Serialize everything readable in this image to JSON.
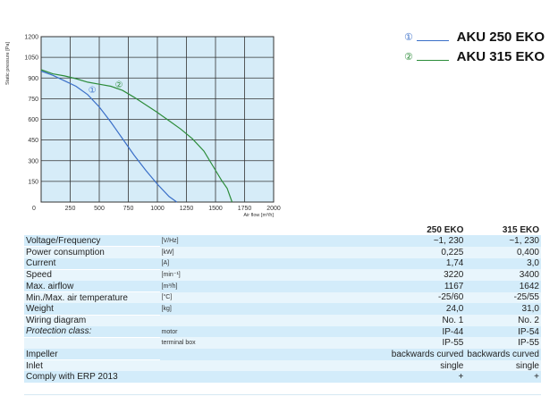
{
  "chart_data": {
    "type": "line",
    "xlabel": "Air flow [m³/h]",
    "ylabel": "Static pressure [Pa]",
    "xlim": [
      0,
      2000
    ],
    "ylim": [
      0,
      1200
    ],
    "x_ticks": [
      0,
      250,
      500,
      750,
      1000,
      1250,
      1500,
      1750,
      2000
    ],
    "y_ticks": [
      150,
      300,
      450,
      600,
      750,
      900,
      1050,
      1200
    ],
    "grid": true,
    "series": [
      {
        "name": "①",
        "color": "#3a6fc8",
        "points": [
          [
            0,
            950
          ],
          [
            100,
            920
          ],
          [
            200,
            880
          ],
          [
            300,
            840
          ],
          [
            400,
            780
          ],
          [
            500,
            690
          ],
          [
            600,
            580
          ],
          [
            700,
            460
          ],
          [
            800,
            340
          ],
          [
            900,
            230
          ],
          [
            1000,
            130
          ],
          [
            1100,
            40
          ],
          [
            1167,
            0
          ]
        ]
      },
      {
        "name": "②",
        "color": "#2c8c3a",
        "points": [
          [
            0,
            960
          ],
          [
            100,
            930
          ],
          [
            200,
            915
          ],
          [
            300,
            895
          ],
          [
            400,
            870
          ],
          [
            500,
            855
          ],
          [
            600,
            840
          ],
          [
            700,
            810
          ],
          [
            800,
            760
          ],
          [
            900,
            705
          ],
          [
            1000,
            650
          ],
          [
            1100,
            590
          ],
          [
            1200,
            530
          ],
          [
            1300,
            460
          ],
          [
            1400,
            370
          ],
          [
            1500,
            230
          ],
          [
            1550,
            160
          ],
          [
            1600,
            100
          ],
          [
            1642,
            0
          ]
        ]
      }
    ],
    "annotations": [
      {
        "text": "①",
        "x": 440,
        "y": 790
      },
      {
        "text": "②",
        "x": 670,
        "y": 830
      }
    ]
  },
  "legend": [
    {
      "num": "①",
      "name": "AKU  250 EKO",
      "color": "#3a6fc8"
    },
    {
      "num": "②",
      "name": "AKU 315 EKO",
      "color": "#2c8c3a"
    }
  ],
  "table": {
    "headers": [
      "250 EKO",
      "315 EKO"
    ],
    "rows": [
      {
        "label": "Voltage/Frequency",
        "unit": "[V/Hz]",
        "v1": "~1, 230",
        "v2": "~1, 230",
        "style": "row"
      },
      {
        "label": "Power consumption",
        "unit": "[kW]",
        "v1": "0,225",
        "v2": "0,400",
        "style": "alt"
      },
      {
        "label": "Current",
        "unit": "[A]",
        "v1": "1,74",
        "v2": "3,0",
        "style": "row"
      },
      {
        "label": "Speed",
        "unit": "[min⁻¹]",
        "v1": "3220",
        "v2": "3400",
        "style": "alt"
      },
      {
        "label": "Max. airflow",
        "unit": "[m³/h]",
        "v1": "1167",
        "v2": "1642",
        "style": "row"
      },
      {
        "label": "Min./Max. air temperature",
        "unit": "[°C]",
        "v1": "-25/60",
        "v2": "-25/55",
        "style": "alt"
      },
      {
        "label": "Weight",
        "unit": "[kg]",
        "v1": "24,0",
        "v2": "31,0",
        "style": "row"
      },
      {
        "label": "Wiring diagram",
        "unit": "",
        "v1": "No. 1",
        "v2": "No. 2",
        "style": "alt"
      },
      {
        "label": "Protection class:",
        "unit": "motor",
        "v1": "IP-44",
        "v2": "IP-54",
        "style": "row",
        "italic": true
      },
      {
        "label": "",
        "unit": "terminal box",
        "v1": "IP-55",
        "v2": "IP-55",
        "style": "alt"
      },
      {
        "label": "Impeller",
        "unit": "",
        "v1": "backwards curved",
        "v2": "backwards curved",
        "style": "row"
      },
      {
        "label": "Inlet",
        "unit": "",
        "v1": "single",
        "v2": "single",
        "style": "alt"
      },
      {
        "label": "Comply with ERP 2013",
        "unit": "",
        "v1": "+",
        "v2": "+",
        "style": "row"
      }
    ]
  }
}
